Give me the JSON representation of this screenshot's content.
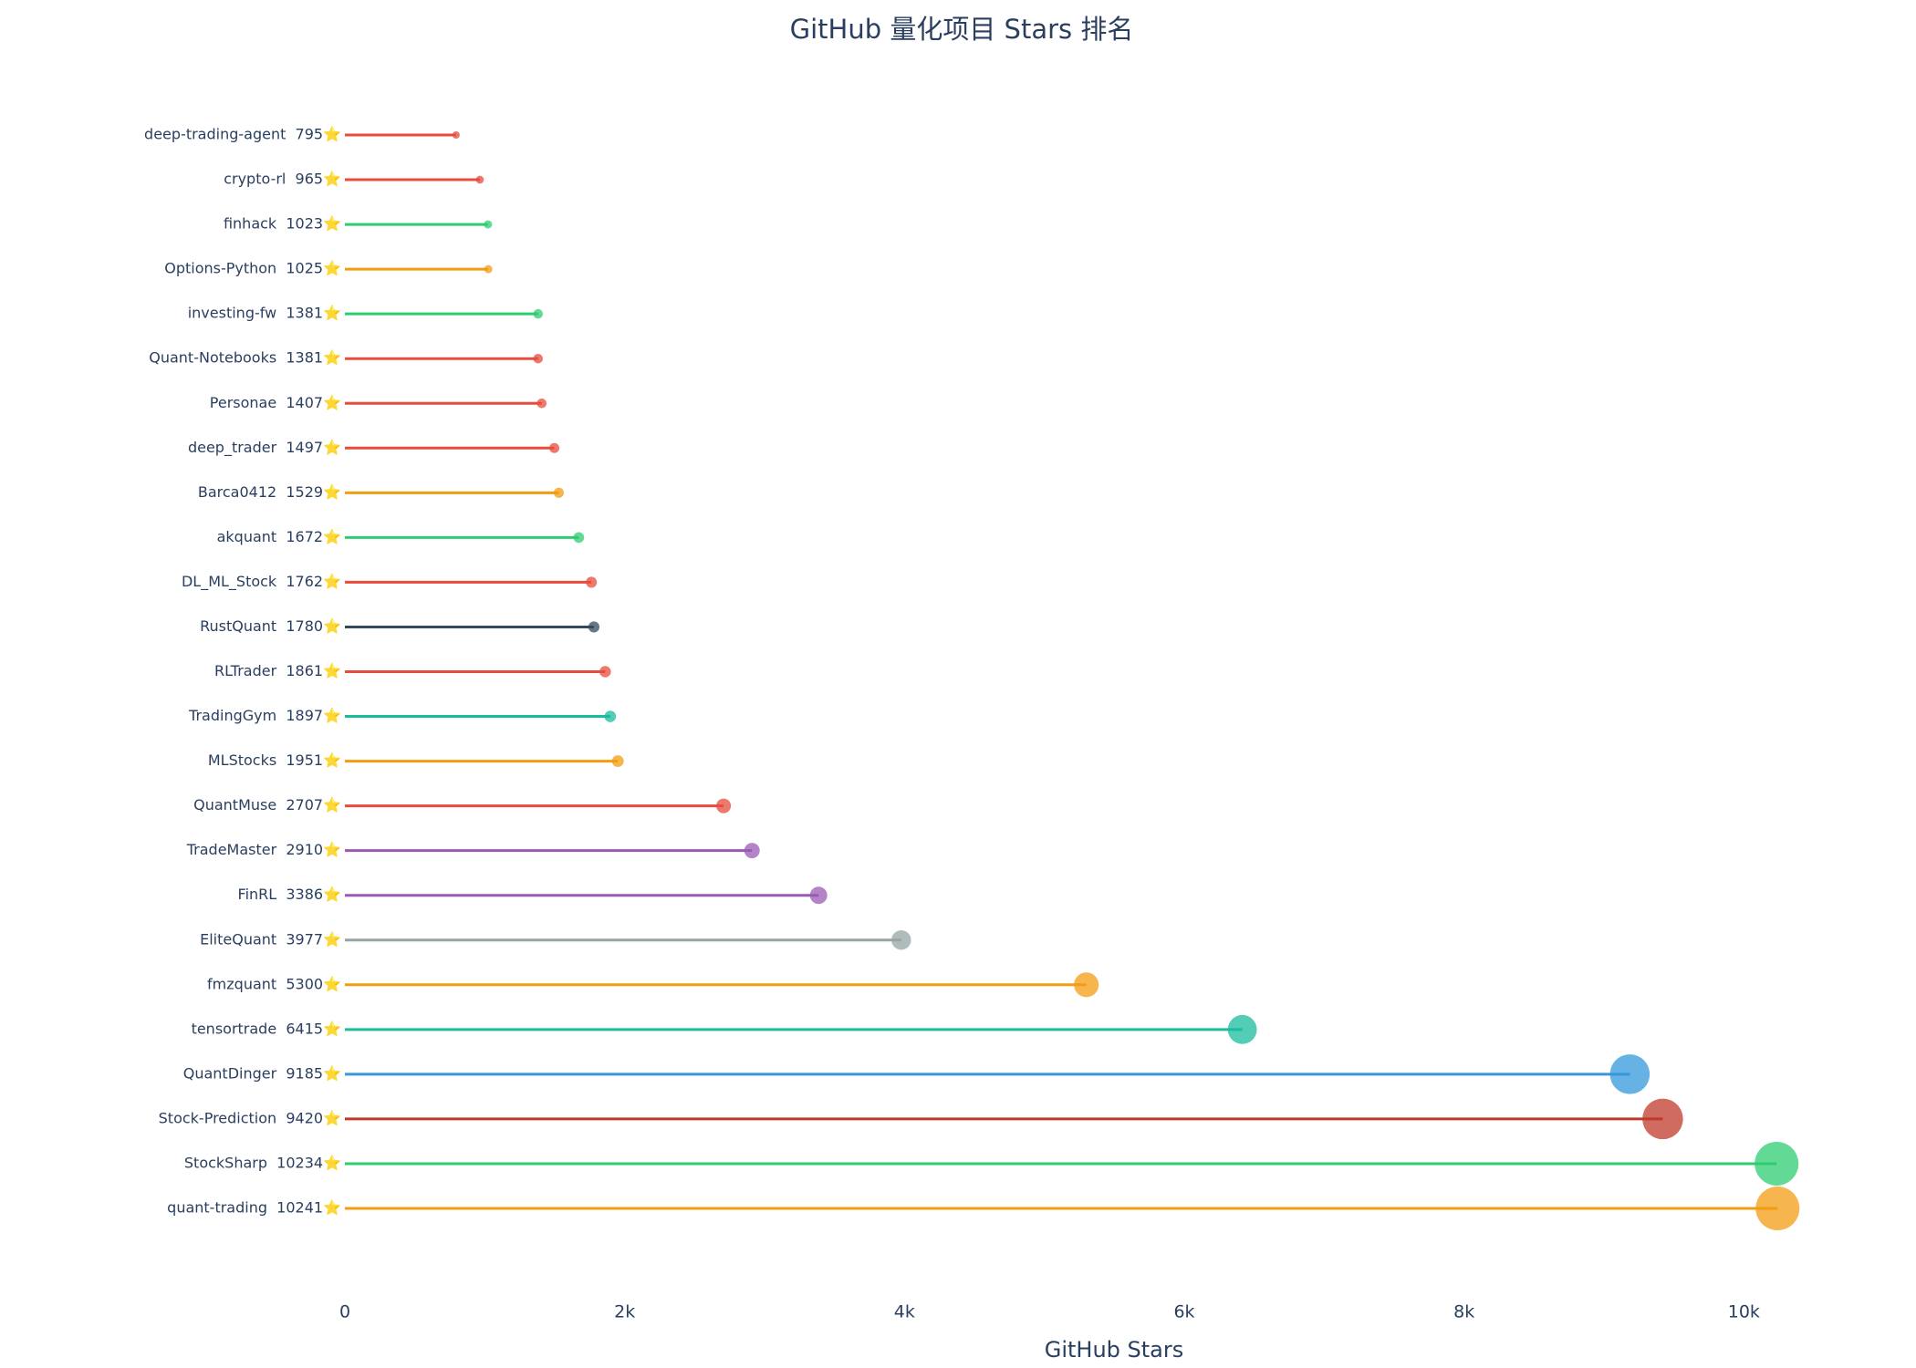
{
  "chart_data": {
    "type": "lollipop",
    "title": "GitHub 量化项目 Stars 排名",
    "x_label": "GitHub Stars",
    "categories": [
      "deep-trading-agent  795⭐",
      "crypto-rl  965⭐",
      "finhack  1023⭐",
      "Options-Python  1025⭐",
      "investing-fw  1381⭐",
      "Quant-Notebooks  1381⭐",
      "Personae  1407⭐",
      "deep_trader  1497⭐",
      "Barca0412  1529⭐",
      "akquant  1672⭐",
      "DL_ML_Stock  1762⭐",
      "RustQuant  1780⭐",
      "RLTrader  1861⭐",
      "TradingGym  1897⭐",
      "MLStocks  1951⭐",
      "QuantMuse  2707⭐",
      "TradeMaster  2910⭐",
      "FinRL  3386⭐",
      "EliteQuant  3977⭐",
      "fmzquant  5300⭐",
      "tensortrade  6415⭐",
      "QuantDinger  9185⭐",
      "Stock-Prediction  9420⭐",
      "StockSharp  10234⭐",
      "quant-trading  10241⭐"
    ],
    "values": [
      795,
      965,
      1023,
      1025,
      1381,
      1381,
      1407,
      1497,
      1529,
      1672,
      1762,
      1780,
      1861,
      1897,
      1951,
      2707,
      2910,
      3386,
      3977,
      5300,
      6415,
      9185,
      9420,
      10234,
      10241
    ],
    "colors": [
      "#e74c3c",
      "#e74c3c",
      "#2ecc71",
      "#f39c12",
      "#2ecc71",
      "#e74c3c",
      "#e74c3c",
      "#e74c3c",
      "#f39c12",
      "#2ecc71",
      "#e74c3c",
      "#34495e",
      "#e74c3c",
      "#1abc9c",
      "#f39c12",
      "#e74c3c",
      "#9b59b6",
      "#9b59b6",
      "#95a5a6",
      "#f39c12",
      "#1abc9c",
      "#3498db",
      "#c0392b",
      "#2ecc71",
      "#f39c12"
    ],
    "xlim": [
      0,
      10500
    ],
    "xticks": [
      0,
      {
        "value": 2000,
        "label": "2k"
      },
      {
        "value": 4000,
        "label": "4k"
      },
      {
        "value": 6000,
        "label": "6k"
      },
      {
        "value": 8000,
        "label": "8k"
      },
      {
        "value": 10000,
        "label": "10k"
      }
    ]
  }
}
